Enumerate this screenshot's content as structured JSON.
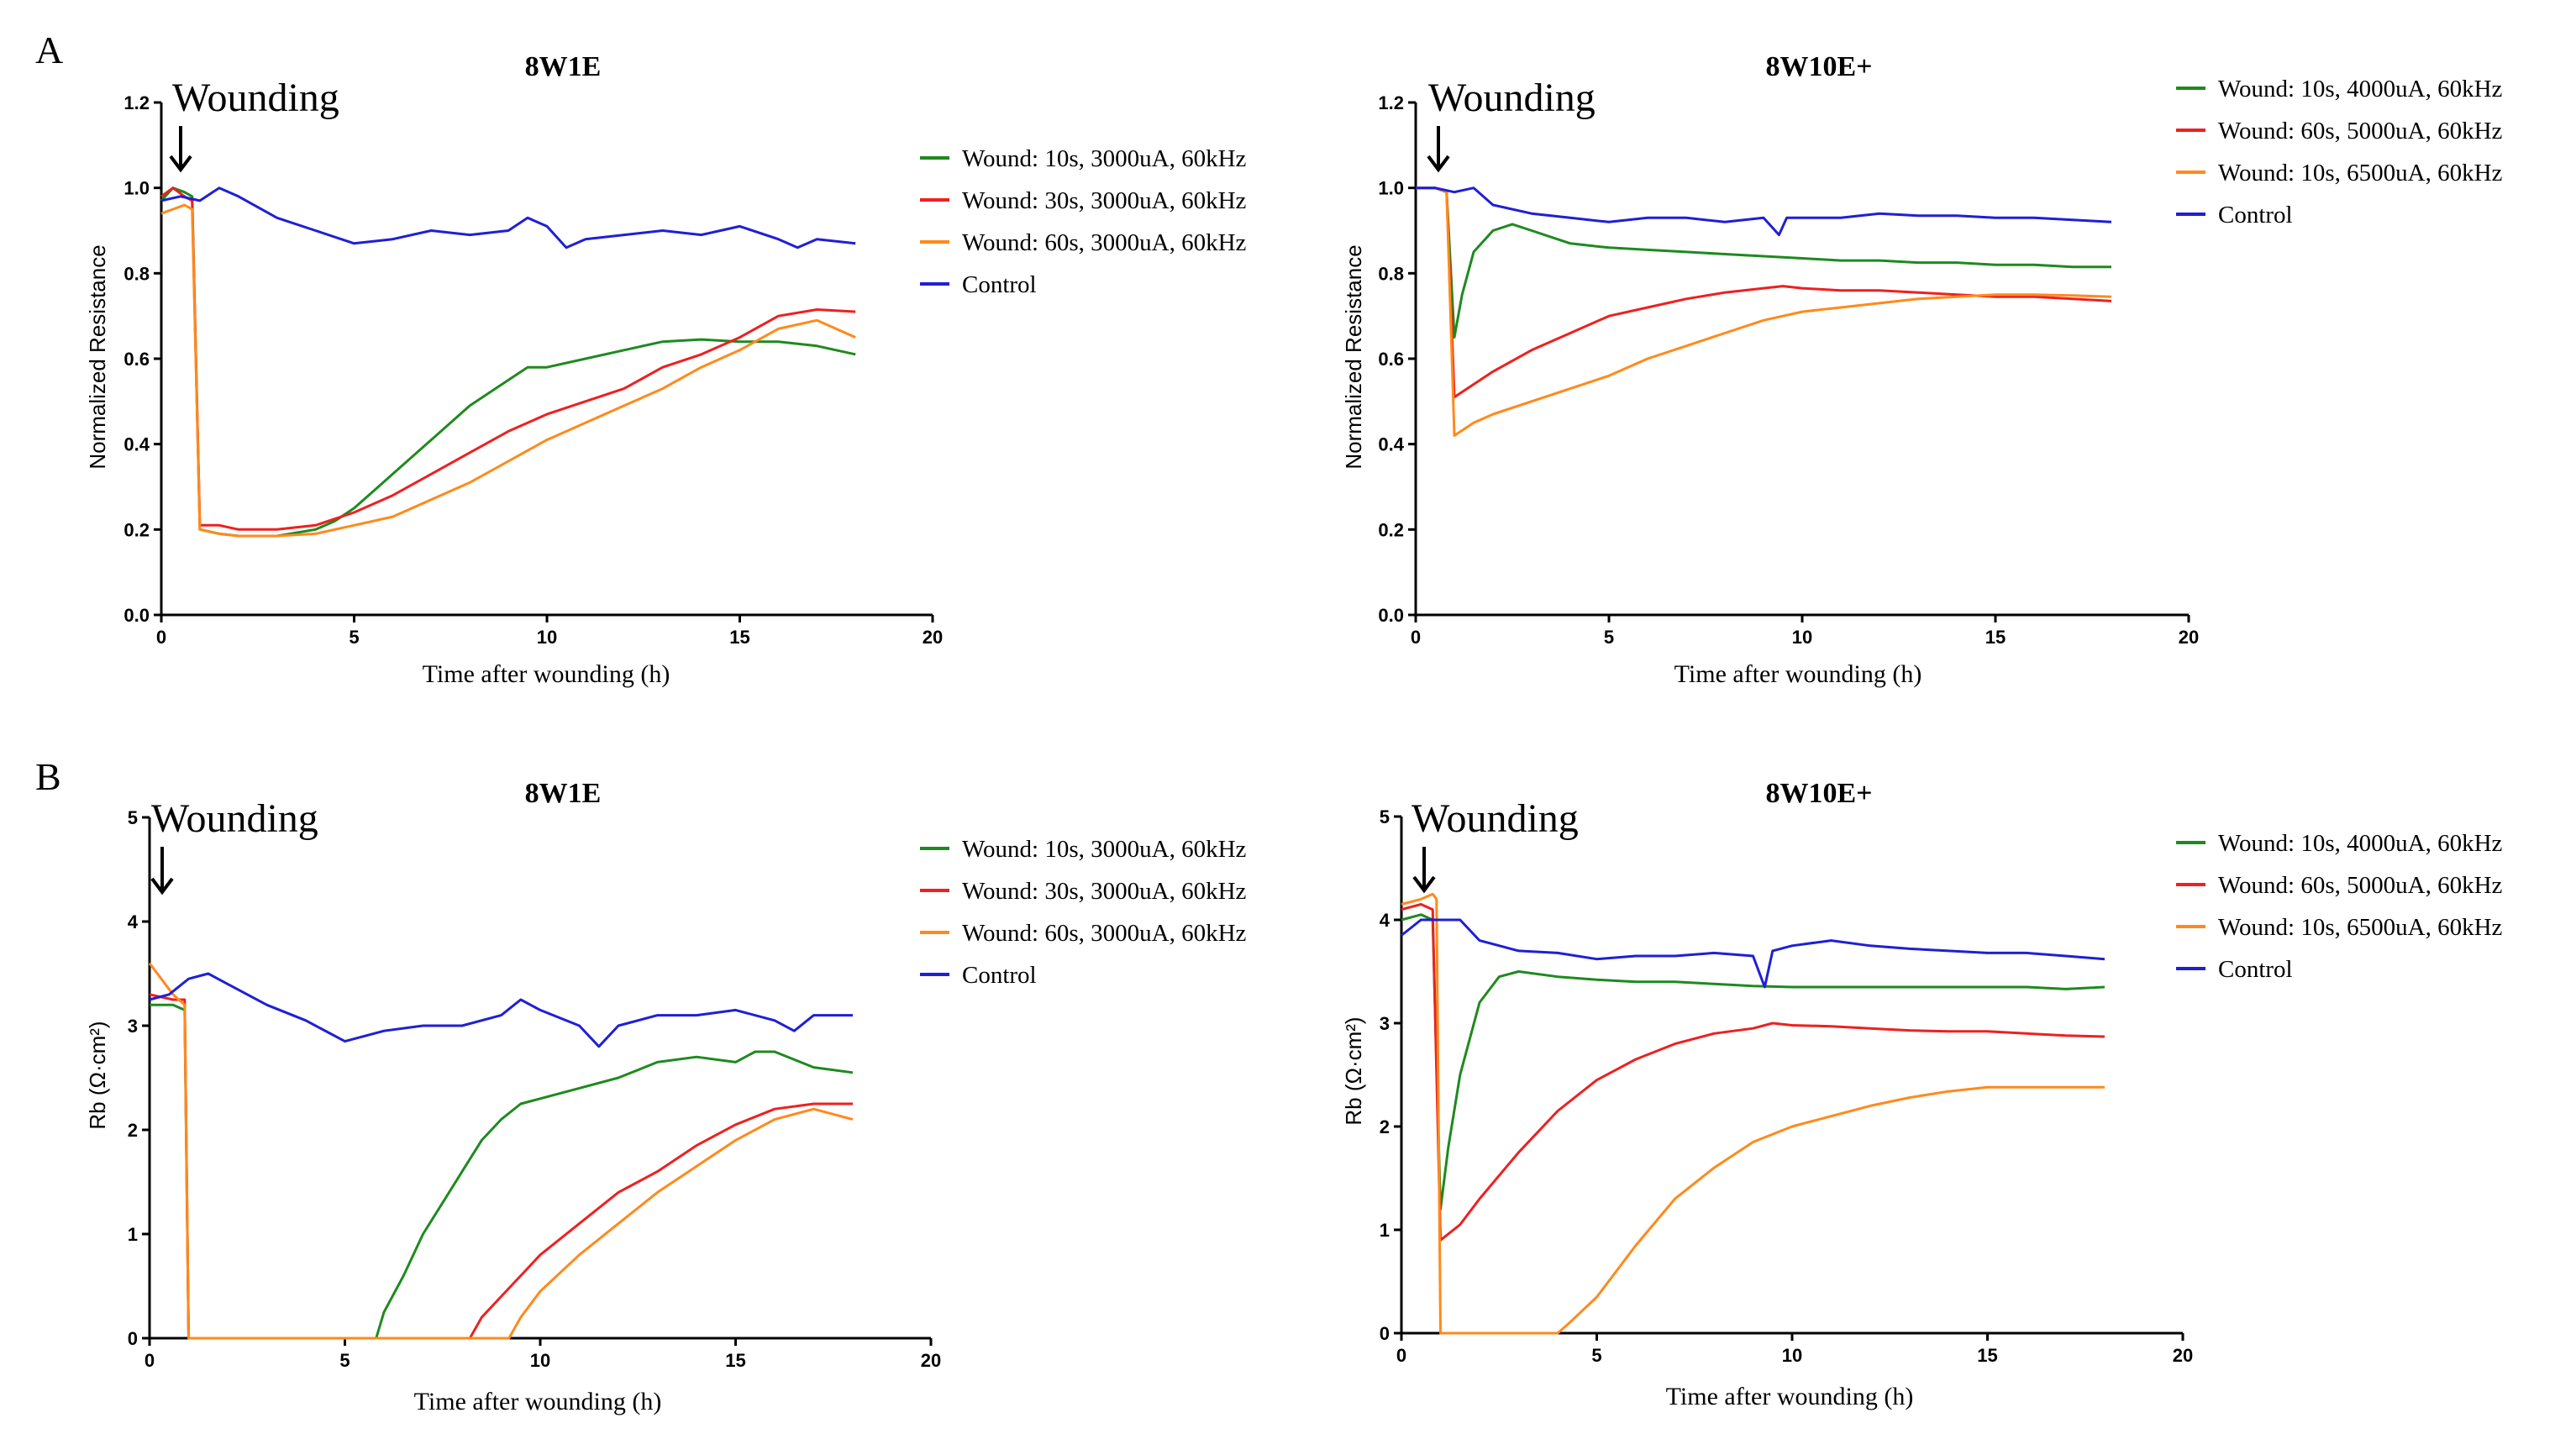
{
  "figure": {
    "panel_labels": [
      "A",
      "B"
    ],
    "annotation": "Wounding"
  },
  "colors": {
    "green": "#1e8a1e",
    "red": "#ee2020",
    "orange": "#ff8a1c",
    "blue": "#1f1fd6"
  },
  "chart_data": [
    {
      "type": "line",
      "title": "8W1E",
      "xlabel": "Time after wounding (h)",
      "ylabel": "Normalized Resistance",
      "xlim": [
        0,
        20
      ],
      "ylim": [
        0,
        1.2
      ],
      "xticks": [
        0,
        5,
        10,
        15,
        20
      ],
      "yticks": [
        0.0,
        0.2,
        0.4,
        0.6,
        0.8,
        1.0,
        1.2
      ],
      "tick_decimals": 1,
      "legend_position": "right",
      "grid": false,
      "series": [
        {
          "name": "Wound: 10s, 3000uA, 60kHz",
          "color": "green",
          "x": [
            0,
            0.3,
            0.6,
            0.8,
            1.0,
            1.5,
            2,
            3,
            4,
            4.5,
            5,
            5.5,
            6,
            7,
            8,
            9,
            9.5,
            10,
            11,
            12,
            13,
            14,
            15,
            16,
            17,
            18
          ],
          "y": [
            0.97,
            1.0,
            0.99,
            0.98,
            0.2,
            0.19,
            0.185,
            0.185,
            0.2,
            0.22,
            0.25,
            0.29,
            0.33,
            0.41,
            0.49,
            0.55,
            0.58,
            0.58,
            0.6,
            0.62,
            0.64,
            0.645,
            0.64,
            0.64,
            0.63,
            0.61
          ]
        },
        {
          "name": "Wound: 30s, 3000uA, 60kHz",
          "color": "red",
          "x": [
            0,
            0.3,
            0.6,
            0.8,
            1.0,
            1.5,
            2,
            3,
            4,
            5,
            6,
            7,
            8,
            9,
            10,
            11,
            12,
            13,
            14,
            15,
            16,
            17,
            18
          ],
          "y": [
            0.98,
            1.0,
            0.98,
            0.97,
            0.21,
            0.21,
            0.2,
            0.2,
            0.21,
            0.24,
            0.28,
            0.33,
            0.38,
            0.43,
            0.47,
            0.5,
            0.53,
            0.58,
            0.61,
            0.65,
            0.7,
            0.715,
            0.71
          ]
        },
        {
          "name": "Wound: 60s, 3000uA, 60kHz",
          "color": "orange",
          "x": [
            0,
            0.3,
            0.6,
            0.8,
            1.0,
            1.5,
            2,
            3,
            4,
            5,
            6,
            7,
            8,
            9,
            10,
            11,
            12,
            13,
            14,
            15,
            16,
            17,
            18
          ],
          "y": [
            0.94,
            0.95,
            0.96,
            0.95,
            0.2,
            0.19,
            0.185,
            0.185,
            0.19,
            0.21,
            0.23,
            0.27,
            0.31,
            0.36,
            0.41,
            0.45,
            0.49,
            0.53,
            0.58,
            0.62,
            0.67,
            0.69,
            0.65
          ]
        },
        {
          "name": "Control",
          "color": "blue",
          "x": [
            0,
            0.5,
            1,
            1.5,
            2,
            3,
            4,
            5,
            6,
            7,
            8,
            9,
            9.5,
            10,
            10.5,
            11,
            12,
            13,
            14,
            15,
            16,
            16.5,
            17,
            18
          ],
          "y": [
            0.97,
            0.98,
            0.97,
            1.0,
            0.98,
            0.93,
            0.9,
            0.87,
            0.88,
            0.9,
            0.89,
            0.9,
            0.93,
            0.91,
            0.86,
            0.88,
            0.89,
            0.9,
            0.89,
            0.91,
            0.88,
            0.86,
            0.88,
            0.87
          ]
        }
      ]
    },
    {
      "type": "line",
      "title": "8W10E+",
      "xlabel": "Time after wounding (h)",
      "ylabel": "Normalized Resistance",
      "xlim": [
        0,
        20
      ],
      "ylim": [
        0,
        1.2
      ],
      "xticks": [
        0,
        5,
        10,
        15,
        20
      ],
      "yticks": [
        0.0,
        0.2,
        0.4,
        0.6,
        0.8,
        1.0,
        1.2
      ],
      "tick_decimals": 1,
      "legend_position": "top-right",
      "grid": false,
      "series": [
        {
          "name": "Wound: 10s, 4000uA, 60kHz",
          "color": "green",
          "x": [
            0,
            0.5,
            0.8,
            1.0,
            1.2,
            1.5,
            2,
            2.5,
            3,
            4,
            5,
            6,
            7,
            8,
            9,
            10,
            11,
            12,
            13,
            14,
            15,
            16,
            17,
            18
          ],
          "y": [
            1.0,
            1.0,
            0.99,
            0.65,
            0.75,
            0.85,
            0.9,
            0.915,
            0.9,
            0.87,
            0.86,
            0.855,
            0.85,
            0.845,
            0.84,
            0.835,
            0.83,
            0.83,
            0.825,
            0.825,
            0.82,
            0.82,
            0.815,
            0.815
          ]
        },
        {
          "name": "Wound: 60s, 5000uA, 60kHz",
          "color": "red",
          "x": [
            0,
            0.5,
            0.8,
            1.0,
            1.5,
            2,
            3,
            4,
            5,
            6,
            7,
            8,
            9,
            9.5,
            10,
            11,
            12,
            13,
            14,
            15,
            16,
            17,
            18
          ],
          "y": [
            1.0,
            1.0,
            0.99,
            0.51,
            0.54,
            0.57,
            0.62,
            0.66,
            0.7,
            0.72,
            0.74,
            0.755,
            0.765,
            0.77,
            0.765,
            0.76,
            0.76,
            0.755,
            0.75,
            0.745,
            0.745,
            0.74,
            0.735
          ]
        },
        {
          "name": "Wound: 10s, 6500uA, 60kHz",
          "color": "orange",
          "x": [
            0,
            0.5,
            0.8,
            1.0,
            1.5,
            2,
            3,
            4,
            5,
            6,
            7,
            8,
            9,
            10,
            11,
            12,
            13,
            14,
            15,
            16,
            17,
            18
          ],
          "y": [
            1.0,
            1.0,
            0.99,
            0.42,
            0.45,
            0.47,
            0.5,
            0.53,
            0.56,
            0.6,
            0.63,
            0.66,
            0.69,
            0.71,
            0.72,
            0.73,
            0.74,
            0.745,
            0.75,
            0.75,
            0.748,
            0.745
          ]
        },
        {
          "name": "Control",
          "color": "blue",
          "x": [
            0,
            0.5,
            1,
            1.5,
            2,
            3,
            4,
            5,
            6,
            7,
            8,
            9,
            9.4,
            9.6,
            10,
            11,
            12,
            13,
            14,
            15,
            16,
            17,
            18
          ],
          "y": [
            1.0,
            1.0,
            0.99,
            1.0,
            0.96,
            0.94,
            0.93,
            0.92,
            0.93,
            0.93,
            0.92,
            0.93,
            0.89,
            0.93,
            0.93,
            0.93,
            0.94,
            0.935,
            0.935,
            0.93,
            0.93,
            0.925,
            0.92
          ]
        }
      ]
    },
    {
      "type": "line",
      "title": "8W1E",
      "xlabel": "Time after wounding (h)",
      "ylabel": "Rb (Ω·cm²)",
      "xlim": [
        0,
        20
      ],
      "ylim": [
        0,
        5
      ],
      "xticks": [
        0,
        5,
        10,
        15,
        20
      ],
      "yticks": [
        0,
        1,
        2,
        3,
        4,
        5
      ],
      "tick_decimals": 0,
      "legend_position": "right",
      "grid": false,
      "series": [
        {
          "name": "Wound: 10s, 3000uA, 60kHz",
          "color": "green",
          "x": [
            0,
            0.6,
            0.9,
            1.0,
            2,
            3,
            4,
            5,
            5.8,
            6,
            6.5,
            7,
            7.5,
            8,
            8.5,
            9,
            9.5,
            10,
            11,
            12,
            13,
            14,
            15,
            15.5,
            16,
            17,
            18
          ],
          "y": [
            3.2,
            3.2,
            3.15,
            0.0,
            0.0,
            0.0,
            0.0,
            0.0,
            0.0,
            0.25,
            0.6,
            1.0,
            1.3,
            1.6,
            1.9,
            2.1,
            2.25,
            2.3,
            2.4,
            2.5,
            2.65,
            2.7,
            2.65,
            2.75,
            2.75,
            2.6,
            2.55
          ]
        },
        {
          "name": "Wound: 30s, 3000uA, 60kHz",
          "color": "red",
          "x": [
            0,
            0.6,
            0.9,
            1.0,
            3,
            5,
            7,
            8.2,
            8.5,
            9,
            9.5,
            10,
            11,
            12,
            13,
            14,
            15,
            16,
            17,
            18
          ],
          "y": [
            3.3,
            3.25,
            3.25,
            0.0,
            0.0,
            0.0,
            0.0,
            0.0,
            0.2,
            0.4,
            0.6,
            0.8,
            1.1,
            1.4,
            1.6,
            1.85,
            2.05,
            2.2,
            2.25,
            2.25
          ]
        },
        {
          "name": "Wound: 60s, 3000uA, 60kHz",
          "color": "orange",
          "x": [
            0,
            0.6,
            0.9,
            1.0,
            3,
            5,
            7,
            9.2,
            9.5,
            10,
            11,
            12,
            13,
            14,
            15,
            16,
            17,
            18
          ],
          "y": [
            3.6,
            3.3,
            3.2,
            0.0,
            0.0,
            0.0,
            0.0,
            0.0,
            0.2,
            0.45,
            0.8,
            1.1,
            1.4,
            1.65,
            1.9,
            2.1,
            2.2,
            2.1
          ]
        },
        {
          "name": "Control",
          "color": "blue",
          "x": [
            0,
            0.5,
            1,
            1.5,
            2,
            3,
            4,
            5,
            6,
            7,
            8,
            9,
            9.5,
            10,
            11,
            11.5,
            12,
            13,
            14,
            15,
            16,
            16.5,
            17,
            18
          ],
          "y": [
            3.25,
            3.3,
            3.45,
            3.5,
            3.4,
            3.2,
            3.05,
            2.85,
            2.95,
            3.0,
            3.0,
            3.1,
            3.25,
            3.15,
            3.0,
            2.8,
            3.0,
            3.1,
            3.1,
            3.15,
            3.05,
            2.95,
            3.1,
            3.1
          ]
        }
      ]
    },
    {
      "type": "line",
      "title": "8W10E+",
      "xlabel": "Time after wounding (h)",
      "ylabel": "Rb (Ω·cm²)",
      "xlim": [
        0,
        20
      ],
      "ylim": [
        0,
        5
      ],
      "xticks": [
        0,
        5,
        10,
        15,
        20
      ],
      "yticks": [
        0,
        1,
        2,
        3,
        4,
        5
      ],
      "tick_decimals": 0,
      "legend_position": "top-right",
      "grid": false,
      "series": [
        {
          "name": "Wound: 10s, 4000uA, 60kHz",
          "color": "green",
          "x": [
            0,
            0.5,
            0.8,
            1.0,
            1.2,
            1.5,
            2,
            2.5,
            3,
            4,
            5,
            6,
            7,
            8,
            9,
            10,
            11,
            12,
            13,
            14,
            15,
            16,
            17,
            18
          ],
          "y": [
            4.0,
            4.05,
            4.0,
            1.2,
            1.8,
            2.5,
            3.2,
            3.45,
            3.5,
            3.45,
            3.42,
            3.4,
            3.4,
            3.38,
            3.36,
            3.35,
            3.35,
            3.35,
            3.35,
            3.35,
            3.35,
            3.35,
            3.33,
            3.35
          ]
        },
        {
          "name": "Wound: 60s, 5000uA, 60kHz",
          "color": "red",
          "x": [
            0,
            0.5,
            0.8,
            1.0,
            1.5,
            2,
            3,
            4,
            5,
            6,
            7,
            8,
            9,
            9.5,
            10,
            11,
            12,
            13,
            14,
            15,
            16,
            17,
            18
          ],
          "y": [
            4.1,
            4.15,
            4.1,
            0.9,
            1.05,
            1.3,
            1.75,
            2.15,
            2.45,
            2.65,
            2.8,
            2.9,
            2.95,
            3.0,
            2.98,
            2.97,
            2.95,
            2.93,
            2.92,
            2.92,
            2.9,
            2.88,
            2.87
          ]
        },
        {
          "name": "Wound: 10s, 6500uA, 60kHz",
          "color": "orange",
          "x": [
            0,
            0.5,
            0.8,
            0.9,
            1.0,
            2,
            3,
            4,
            4.3,
            5,
            6,
            7,
            8,
            9,
            10,
            11,
            12,
            13,
            14,
            15,
            16,
            17,
            18
          ],
          "y": [
            4.15,
            4.2,
            4.25,
            4.2,
            0.0,
            0.0,
            0.0,
            0.0,
            0.1,
            0.35,
            0.85,
            1.3,
            1.6,
            1.85,
            2.0,
            2.1,
            2.2,
            2.28,
            2.34,
            2.38,
            2.38,
            2.38,
            2.38
          ]
        },
        {
          "name": "Control",
          "color": "blue",
          "x": [
            0,
            0.5,
            1,
            1.5,
            2,
            3,
            4,
            5,
            6,
            7,
            8,
            9,
            9.3,
            9.5,
            10,
            11,
            12,
            13,
            14,
            15,
            16,
            17,
            18
          ],
          "y": [
            3.85,
            4.0,
            4.0,
            4.0,
            3.8,
            3.7,
            3.68,
            3.62,
            3.65,
            3.65,
            3.68,
            3.65,
            3.35,
            3.7,
            3.75,
            3.8,
            3.75,
            3.72,
            3.7,
            3.68,
            3.68,
            3.65,
            3.62
          ]
        }
      ]
    }
  ]
}
